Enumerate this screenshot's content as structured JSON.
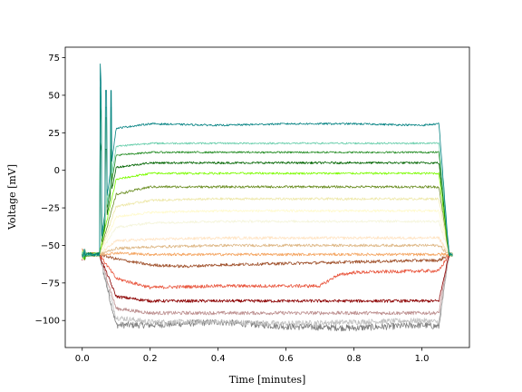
{
  "chart_data": {
    "type": "line",
    "title": "",
    "xlabel": "Time [minutes]",
    "ylabel": "Voltage [mV]",
    "xlim": [
      -0.05,
      1.14
    ],
    "ylim": [
      -118,
      82
    ],
    "xticks": [
      0.0,
      0.2,
      0.4,
      0.6,
      0.8,
      1.0
    ],
    "xtick_labels": [
      "0.0",
      "0.2",
      "0.4",
      "0.6",
      "0.8",
      "1.0"
    ],
    "yticks": [
      -100,
      -75,
      -50,
      -25,
      0,
      25,
      50,
      75
    ],
    "ytick_labels": [
      "−100",
      "−75",
      "−50",
      "−25",
      "0",
      "25",
      "50",
      "75"
    ],
    "grid": false,
    "legend": "none",
    "stimulus_window": [
      0.05,
      1.05
    ],
    "baseline_mV": -56,
    "series": [
      {
        "color": "#008080",
        "steady_mV": 31,
        "peak_mV": 76,
        "noise_mV": 0.6,
        "x": [
          0.05,
          0.1,
          0.2,
          0.4,
          0.6,
          0.8,
          1.0,
          1.05
        ],
        "values": [
          -56,
          28,
          31,
          30,
          31,
          31,
          30,
          31
        ]
      },
      {
        "color": "#66cdaa",
        "steady_mV": 18,
        "peak_mV": 60,
        "noise_mV": 0.6,
        "x": [
          0.05,
          0.1,
          0.2,
          0.4,
          0.6,
          0.8,
          1.0,
          1.05
        ],
        "values": [
          -56,
          16,
          18,
          18,
          18,
          18,
          18,
          18
        ]
      },
      {
        "color": "#228b22",
        "steady_mV": 12,
        "peak_mV": 50,
        "noise_mV": 0.6,
        "x": [
          0.05,
          0.1,
          0.2,
          0.4,
          0.6,
          0.8,
          1.0,
          1.05
        ],
        "values": [
          -56,
          10,
          12,
          12,
          12,
          12,
          12,
          12
        ]
      },
      {
        "color": "#006400",
        "steady_mV": 5,
        "peak_mV": 20,
        "noise_mV": 0.7,
        "x": [
          0.05,
          0.1,
          0.2,
          0.4,
          0.6,
          0.8,
          1.0,
          1.05
        ],
        "values": [
          -56,
          2,
          5,
          5,
          5,
          5,
          5,
          5
        ]
      },
      {
        "color": "#7cfc00",
        "steady_mV": -2,
        "peak_mV": -2,
        "noise_mV": 0.7,
        "x": [
          0.05,
          0.1,
          0.2,
          0.4,
          0.6,
          0.8,
          1.0,
          1.05
        ],
        "values": [
          -56,
          -6,
          -2,
          -2,
          -2,
          -2,
          -2,
          -2
        ]
      },
      {
        "color": "#6b8e23",
        "steady_mV": -11,
        "peak_mV": -11,
        "noise_mV": 0.8,
        "x": [
          0.05,
          0.1,
          0.2,
          0.4,
          0.6,
          0.8,
          1.0,
          1.05
        ],
        "values": [
          -56,
          -16,
          -11,
          -11,
          -11,
          -11,
          -11,
          -11
        ]
      },
      {
        "color": "#eee8aa",
        "steady_mV": -19,
        "peak_mV": -19,
        "noise_mV": 0.8,
        "x": [
          0.05,
          0.1,
          0.2,
          0.4,
          0.6,
          0.8,
          1.0,
          1.05
        ],
        "values": [
          -56,
          -24,
          -20,
          -19,
          -19,
          -19,
          -19,
          -19
        ]
      },
      {
        "color": "#fffacd",
        "steady_mV": -27,
        "peak_mV": -27,
        "noise_mV": 0.8,
        "x": [
          0.05,
          0.1,
          0.2,
          0.4,
          0.6,
          0.8,
          1.0,
          1.05
        ],
        "values": [
          -56,
          -31,
          -28,
          -27,
          -27,
          -27,
          -27,
          -27
        ]
      },
      {
        "color": "#f5f5dc",
        "steady_mV": -34,
        "peak_mV": -34,
        "noise_mV": 0.8,
        "x": [
          0.05,
          0.1,
          0.2,
          0.4,
          0.6,
          0.8,
          1.0,
          1.05
        ],
        "values": [
          -56,
          -38,
          -35,
          -34,
          -34,
          -34,
          -34,
          -34
        ]
      },
      {
        "color": "#ffe4c4",
        "steady_mV": -45,
        "peak_mV": -45,
        "noise_mV": 0.9,
        "x": [
          0.05,
          0.1,
          0.2,
          0.4,
          0.6,
          0.8,
          1.0,
          1.05
        ],
        "values": [
          -56,
          -47,
          -46,
          -45,
          -45,
          -45,
          -45,
          -45
        ]
      },
      {
        "color": "#deb887",
        "steady_mV": -50,
        "peak_mV": -50,
        "noise_mV": 0.9,
        "x": [
          0.05,
          0.1,
          0.2,
          0.4,
          0.6,
          0.8,
          1.0,
          1.05
        ],
        "values": [
          -56,
          -52,
          -51,
          -50,
          -50,
          -50,
          -50,
          -50
        ]
      },
      {
        "color": "#f4a460",
        "steady_mV": -56,
        "peak_mV": -56,
        "noise_mV": 0.9,
        "x": [
          0.05,
          0.1,
          0.2,
          0.4,
          0.6,
          0.8,
          1.0,
          1.05
        ],
        "values": [
          -56,
          -55,
          -56,
          -56,
          -56,
          -56,
          -56,
          -56
        ]
      },
      {
        "color": "#a0522d",
        "steady_mV": -63,
        "peak_mV": -63,
        "noise_mV": 1.0,
        "x": [
          0.05,
          0.1,
          0.2,
          0.3,
          0.4,
          0.6,
          0.8,
          1.0,
          1.05
        ],
        "values": [
          -56,
          -59,
          -63,
          -64,
          -63,
          -62,
          -61,
          -60,
          -60
        ]
      },
      {
        "color": "#e9573f",
        "steady_mV": -77,
        "peak_mV": -77,
        "noise_mV": 1.1,
        "x": [
          0.05,
          0.1,
          0.2,
          0.4,
          0.6,
          0.7,
          0.75,
          0.8,
          1.0,
          1.05
        ],
        "values": [
          -56,
          -72,
          -78,
          -77,
          -77,
          -77,
          -70,
          -68,
          -67,
          -67
        ]
      },
      {
        "color": "#8b0000",
        "steady_mV": -87,
        "peak_mV": -87,
        "noise_mV": 1.0,
        "x": [
          0.05,
          0.1,
          0.2,
          0.4,
          0.6,
          0.8,
          1.0,
          1.05
        ],
        "values": [
          -56,
          -84,
          -87,
          -87,
          -87,
          -87,
          -87,
          -87
        ]
      },
      {
        "color": "#bc8f8f",
        "steady_mV": -95,
        "peak_mV": -95,
        "noise_mV": 1.2,
        "x": [
          0.05,
          0.1,
          0.2,
          0.4,
          0.6,
          0.8,
          1.0,
          1.05
        ],
        "values": [
          -56,
          -92,
          -95,
          -95,
          -95,
          -95,
          -95,
          -95
        ]
      },
      {
        "color": "#c0c0c0",
        "steady_mV": -101,
        "peak_mV": -101,
        "noise_mV": 1.8,
        "x": [
          0.05,
          0.1,
          0.2,
          0.4,
          0.6,
          0.8,
          1.0,
          1.05
        ],
        "values": [
          -56,
          -98,
          -101,
          -101,
          -102,
          -101,
          -100,
          -101
        ]
      },
      {
        "color": "#808080",
        "steady_mV": -104,
        "peak_mV": -104,
        "noise_mV": 2.2,
        "x": [
          0.05,
          0.1,
          0.2,
          0.4,
          0.6,
          0.8,
          1.0,
          1.05
        ],
        "values": [
          -56,
          -103,
          -103,
          -101,
          -104,
          -105,
          -103,
          -104
        ]
      }
    ]
  }
}
